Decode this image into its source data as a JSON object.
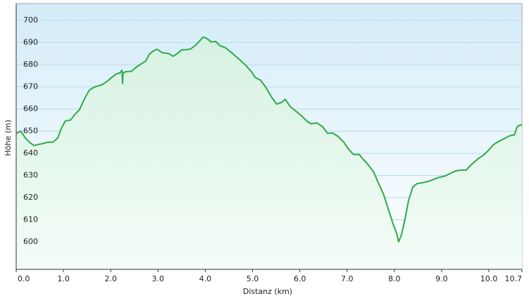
{
  "chart_data": {
    "type": "area",
    "x_label": "Distanz  (km)",
    "y_label": "Höhe (m)",
    "color": "#2eaa46",
    "fill": "#dff5ea",
    "grid": true,
    "xlim": [
      0,
      10.7
    ],
    "xticks": [
      {
        "value": 0,
        "label": "0.0"
      },
      {
        "value": 1,
        "label": "1.0"
      },
      {
        "value": 2,
        "label": "2.0"
      },
      {
        "value": 3,
        "label": "3.0"
      },
      {
        "value": 4,
        "label": "4.0"
      },
      {
        "value": 5,
        "label": "5.0"
      },
      {
        "value": 6,
        "label": "6.0"
      },
      {
        "value": 7,
        "label": "7.0"
      },
      {
        "value": 8,
        "label": "8.0"
      },
      {
        "value": 9,
        "label": "9.0"
      },
      {
        "value": 10,
        "label": "10.0"
      },
      10.7
    ],
    "ylim": [
      587.6,
      707.6
    ],
    "yticks": [
      600,
      610,
      620,
      630,
      640,
      650,
      660,
      670,
      680,
      690,
      700
    ],
    "x": [
      0,
      0.1,
      0.19,
      0.28,
      0.37,
      0.48,
      0.58,
      0.67,
      0.78,
      0.88,
      0.95,
      1.04,
      1.15,
      1.24,
      1.34,
      1.45,
      1.55,
      1.67,
      1.82,
      1.92,
      2.01,
      2.12,
      2.19,
      2.24,
      2.25,
      2.26,
      2.31,
      2.44,
      2.53,
      2.64,
      2.74,
      2.82,
      2.91,
      2.98,
      3.09,
      3.23,
      3.32,
      3.41,
      3.5,
      3.59,
      3.68,
      3.77,
      3.86,
      3.95,
      4.02,
      4.13,
      4.22,
      4.31,
      4.43,
      4.58,
      4.73,
      4.87,
      4.99,
      5.05,
      5.17,
      5.28,
      5.4,
      5.51,
      5.62,
      5.69,
      5.8,
      5.92,
      6.04,
      6.16,
      6.24,
      6.36,
      6.48,
      6.59,
      6.69,
      6.81,
      6.93,
      7.03,
      7.14,
      7.26,
      7.35,
      7.44,
      7.56,
      7.66,
      7.77,
      7.88,
      7.97,
      8.05,
      8.09,
      8.15,
      8.23,
      8.3,
      8.39,
      8.48,
      8.6,
      8.72,
      8.84,
      8.96,
      9.08,
      9.2,
      9.31,
      9.42,
      9.52,
      9.6,
      9.7,
      9.79,
      9.9,
      9.99,
      10.09,
      10.18,
      10.27,
      10.36,
      10.45,
      10.54,
      10.6,
      10.66,
      10.7
    ],
    "values": [
      649,
      650,
      647,
      645,
      643.5,
      644,
      644.5,
      645,
      645,
      647,
      651,
      654.6,
      655,
      657.5,
      659.7,
      664.8,
      668.6,
      670,
      671,
      672.4,
      674,
      675.9,
      676.2,
      677.5,
      671.5,
      676,
      676.8,
      677,
      678.7,
      680.3,
      681.6,
      684.8,
      686.3,
      687,
      685.4,
      685,
      683.8,
      685,
      686.7,
      686.7,
      687,
      688.3,
      690.2,
      692.4,
      692,
      690.2,
      690.5,
      688.6,
      687.6,
      685,
      682.2,
      679.4,
      676.5,
      674.3,
      673,
      669.8,
      665.4,
      662.2,
      663,
      664.4,
      661,
      659,
      656.8,
      654.3,
      653.3,
      653.7,
      652,
      649,
      649.2,
      647.6,
      645,
      641.9,
      639.4,
      639.4,
      637.1,
      635,
      631.7,
      626.7,
      621.6,
      614.3,
      608.3,
      603.8,
      600,
      603.2,
      610.8,
      618.7,
      624.8,
      626.3,
      626.7,
      627.3,
      628.3,
      629.2,
      629.8,
      631.1,
      632.1,
      632.4,
      632.4,
      634.3,
      636.2,
      637.8,
      639.4,
      641.3,
      643.8,
      645,
      646,
      647,
      648,
      648.3,
      652,
      652.7,
      652.7
    ]
  }
}
